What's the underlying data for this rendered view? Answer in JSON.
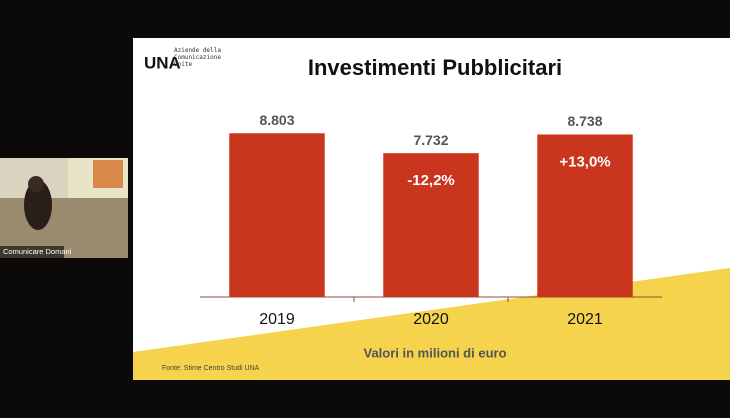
{
  "participant": {
    "name": "Comunicare Domani"
  },
  "slide": {
    "logo": "UNA",
    "logo_caption": "Aziende della Comunicazione Unite",
    "source": "Fonte: Stime Centro Studi UNA"
  },
  "chart_data": {
    "type": "bar",
    "title": "Investimenti Pubblicitari",
    "subtitle": "Valori in milioni di euro",
    "categories": [
      "2019",
      "2020",
      "2021"
    ],
    "values": [
      8803,
      7732,
      8738
    ],
    "value_labels": [
      "8.803",
      "7.732",
      "8.738"
    ],
    "annotations": [
      "-12,2%",
      "+13,0%"
    ],
    "color": "#c9361d",
    "ylim": [
      0,
      10000
    ]
  }
}
